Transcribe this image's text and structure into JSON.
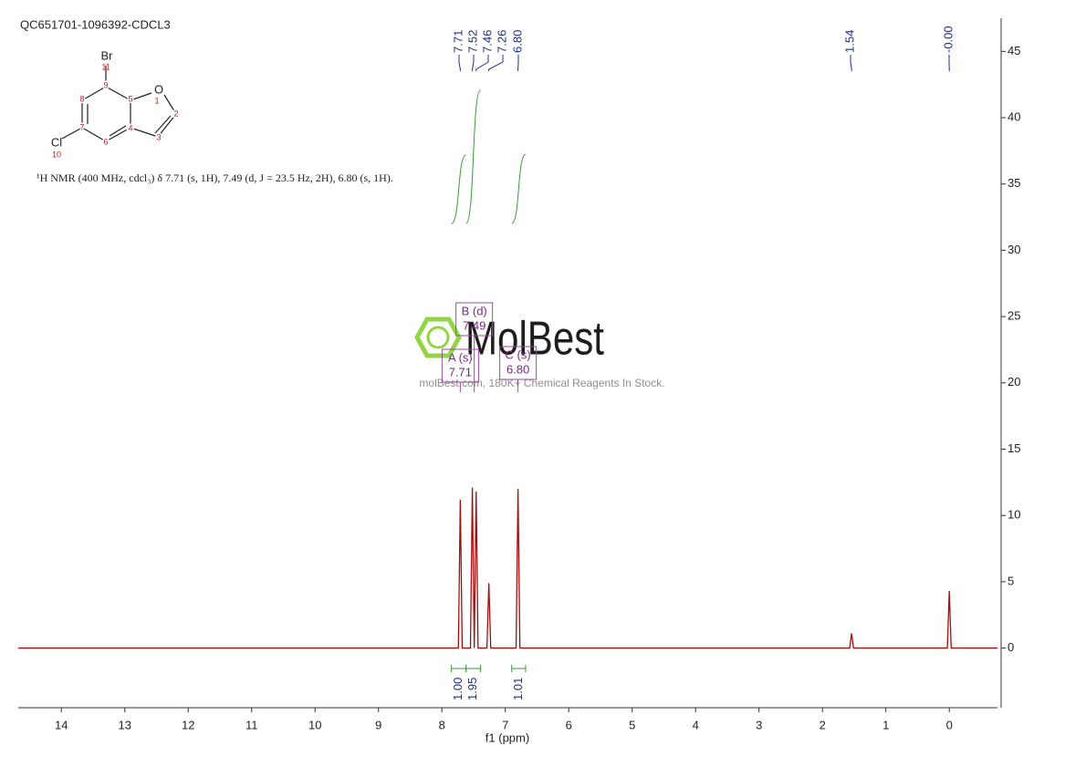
{
  "chart_data": {
    "type": "nmr",
    "title": "QC651701-1096392-CDCL3",
    "description": "¹H NMR (400 MHz, cdcl₃) δ 7.71 (s, 1H), 7.49 (d, J = 23.5 Hz, 2H), 6.80 (s, 1H).",
    "structure": {
      "atoms": [
        {
          "symbol": "Br",
          "number": 11
        },
        {
          "symbol": "O",
          "number": 1
        },
        {
          "symbol": "Cl",
          "number": 10
        }
      ],
      "carbons": [
        2,
        3,
        4,
        5,
        6,
        7,
        8,
        9
      ]
    },
    "x_label": "f1 (ppm)",
    "x": [
      14.68,
      7.74,
      7.71,
      7.68,
      7.55,
      7.52,
      7.49,
      7.46,
      7.43,
      7.29,
      7.26,
      7.23,
      6.83,
      6.8,
      6.77,
      1.57,
      1.54,
      1.51,
      0.03,
      0,
      -0.03,
      -0.76
    ],
    "values": [
      0,
      0,
      11.2,
      0,
      0,
      12.1,
      0,
      11.8,
      0,
      0,
      4.9,
      0,
      0,
      12,
      0,
      0,
      1.1,
      0,
      0,
      4.3,
      0,
      0
    ],
    "color": "#a01010",
    "xlim": [
      14.68,
      -0.76
    ],
    "xticks": [
      14,
      13,
      12,
      11,
      10,
      9,
      8,
      7,
      6,
      5,
      4,
      3,
      2,
      1,
      0
    ],
    "ylim": [
      -4.5,
      47.5
    ],
    "yticks": [
      0,
      5,
      10,
      15,
      20,
      25,
      30,
      35,
      40,
      45
    ],
    "peak_labels": [
      7.71,
      7.52,
      7.46,
      7.26,
      {
        "value": 6.8,
        "label": "6.80"
      },
      1.54,
      {
        "value": 0,
        "label": "-0.00"
      }
    ],
    "integrals": {
      "ranges": [
        [
          7.85,
          7.62
        ],
        [
          7.62,
          7.39
        ],
        [
          6.9,
          6.68
        ]
      ],
      "values": [
        1,
        1.95,
        1.01
      ],
      "value_labels": [
        "1.00",
        "1.95",
        "1.01"
      ]
    },
    "multiplets": [
      {
        "name": "A (s)",
        "shift": 7.71
      },
      {
        "name": "B (d)",
        "shift": 7.49
      },
      {
        "name": "C (s)",
        "shift": {
          "value": 6.8,
          "label": "6.80"
        }
      }
    ],
    "watermark": {
      "brand": "MolBest",
      "tagline": "molBest.com, 180K+ Chemical Reagents In Stock."
    }
  }
}
